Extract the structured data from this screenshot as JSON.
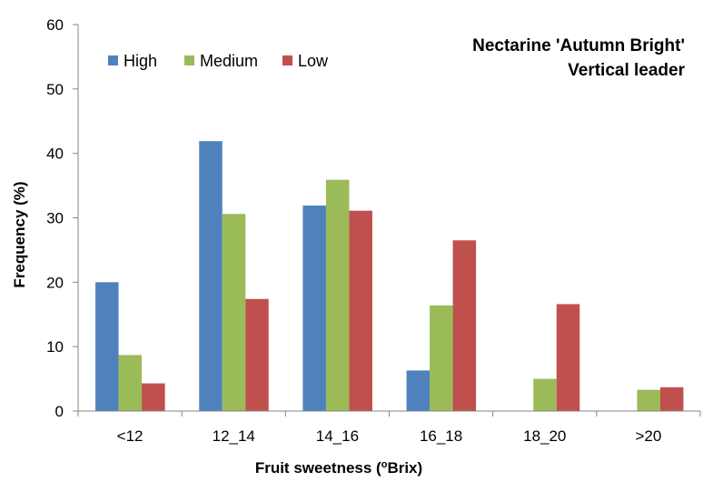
{
  "chart_data": {
    "type": "bar",
    "title_lines": [
      "Nectarine 'Autumn Bright'",
      "Vertical leader"
    ],
    "xlabel_prefix": "Fruit sweetness (",
    "xlabel_sup": "o",
    "xlabel_suffix": "Brix)",
    "ylabel": "Frequency (%)",
    "ylim": [
      0,
      60
    ],
    "yticks": [
      "0",
      "10",
      "20",
      "30",
      "40",
      "50",
      "60"
    ],
    "grid": false,
    "legend_position": "top-left",
    "categories": [
      "<12",
      "12_14",
      "14_16",
      "16_18",
      "18_20",
      ">20"
    ],
    "series": [
      {
        "name": "High",
        "color": "#4F81BD",
        "values": [
          20.0,
          41.9,
          31.9,
          6.3,
          0,
          0
        ]
      },
      {
        "name": "Medium",
        "color": "#9BBB59",
        "values": [
          8.7,
          30.6,
          35.9,
          16.4,
          5.0,
          3.3
        ]
      },
      {
        "name": "Low",
        "color": "#C0504D",
        "values": [
          4.3,
          17.4,
          31.1,
          26.5,
          16.6,
          3.7
        ]
      }
    ]
  }
}
